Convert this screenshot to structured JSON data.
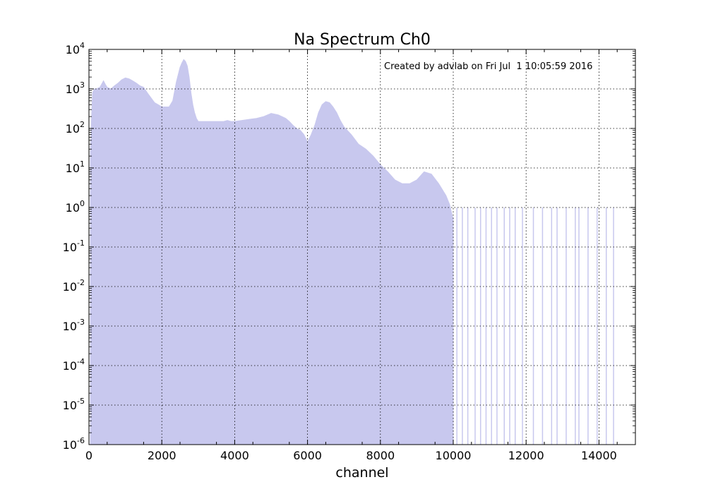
{
  "chart_data": {
    "type": "area",
    "title": "Na Spectrum Ch0",
    "xlabel": "channel",
    "ylabel": "",
    "annotation": "Created by advlab on Fri Jul  1 10:05:59 2016",
    "xlim": [
      0,
      15000
    ],
    "ylim": [
      1e-06,
      10000
    ],
    "yscale": "log",
    "grid": true,
    "x_ticks": [
      0,
      2000,
      4000,
      6000,
      8000,
      10000,
      12000,
      14000
    ],
    "x_tick_labels": [
      "0",
      "2000",
      "4000",
      "6000",
      "8000",
      "10000",
      "12000",
      "14000"
    ],
    "y_ticks": [
      {
        "value": 10000,
        "base": "10",
        "exp": "4"
      },
      {
        "value": 1000,
        "base": "10",
        "exp": "3"
      },
      {
        "value": 100,
        "base": "10",
        "exp": "2"
      },
      {
        "value": 10,
        "base": "10",
        "exp": "1"
      },
      {
        "value": 1,
        "base": "10",
        "exp": "0"
      },
      {
        "value": 0.1,
        "base": "10",
        "exp": "-1"
      },
      {
        "value": 0.01,
        "base": "10",
        "exp": "-2"
      },
      {
        "value": 0.001,
        "base": "10",
        "exp": "-3"
      },
      {
        "value": 0.0001,
        "base": "10",
        "exp": "-4"
      },
      {
        "value": 1e-05,
        "base": "10",
        "exp": "-5"
      },
      {
        "value": 1e-06,
        "base": "10",
        "exp": "-6"
      }
    ],
    "fill_color": "#c8c8ee",
    "series": [
      {
        "x": [
          40,
          80,
          100,
          150,
          200,
          300,
          400,
          450,
          500,
          600,
          700,
          800,
          900,
          1000,
          1100,
          1200,
          1300,
          1400,
          1500,
          1600,
          1700,
          1800,
          1900,
          2000,
          2100,
          2200,
          2300,
          2400,
          2500,
          2550,
          2600,
          2650,
          2700,
          2750,
          2800,
          2850,
          2900,
          2950,
          3000,
          3100,
          3200,
          3300,
          3400,
          3500,
          3600,
          3700,
          3800,
          3900,
          4000,
          4200,
          4400,
          4600,
          4800,
          5000,
          5200,
          5400,
          5500,
          5600,
          5700,
          5800,
          5900,
          6000,
          6100,
          6200,
          6300,
          6400,
          6500,
          6600,
          6700,
          6800,
          6900,
          7000,
          7200,
          7400,
          7600,
          7800,
          8000,
          8200,
          8400,
          8600,
          8800,
          9000,
          9200,
          9400,
          9600,
          9800,
          9900,
          10000
        ],
        "y": [
          30,
          300,
          800,
          1000,
          1000,
          1100,
          1600,
          1300,
          1100,
          1000,
          1200,
          1400,
          1700,
          1900,
          1800,
          1600,
          1400,
          1200,
          1100,
          800,
          600,
          450,
          400,
          350,
          350,
          350,
          500,
          1500,
          3500,
          4500,
          5500,
          5000,
          3800,
          2000,
          800,
          400,
          250,
          180,
          150,
          150,
          150,
          150,
          150,
          150,
          150,
          150,
          160,
          150,
          150,
          160,
          170,
          180,
          200,
          240,
          220,
          180,
          150,
          120,
          100,
          90,
          70,
          45,
          70,
          120,
          250,
          400,
          480,
          450,
          350,
          250,
          160,
          110,
          70,
          40,
          30,
          20,
          12,
          8,
          5,
          4,
          4,
          5,
          8,
          7,
          4,
          2,
          1.2,
          0.5
        ]
      }
    ],
    "sparse_counts_x": [
      10100,
      10250,
      10400,
      10600,
      10750,
      10900,
      11050,
      11200,
      11400,
      11550,
      11700,
      11900,
      12200,
      12450,
      12700,
      12850,
      13100,
      13350,
      13450,
      13700,
      13950,
      14200,
      14400
    ],
    "sparse_counts_y": [
      1,
      1,
      1,
      1,
      1,
      1,
      1,
      1,
      1,
      1,
      1,
      1,
      1,
      1,
      1,
      1,
      1,
      1,
      1,
      1,
      1,
      1,
      1
    ]
  }
}
